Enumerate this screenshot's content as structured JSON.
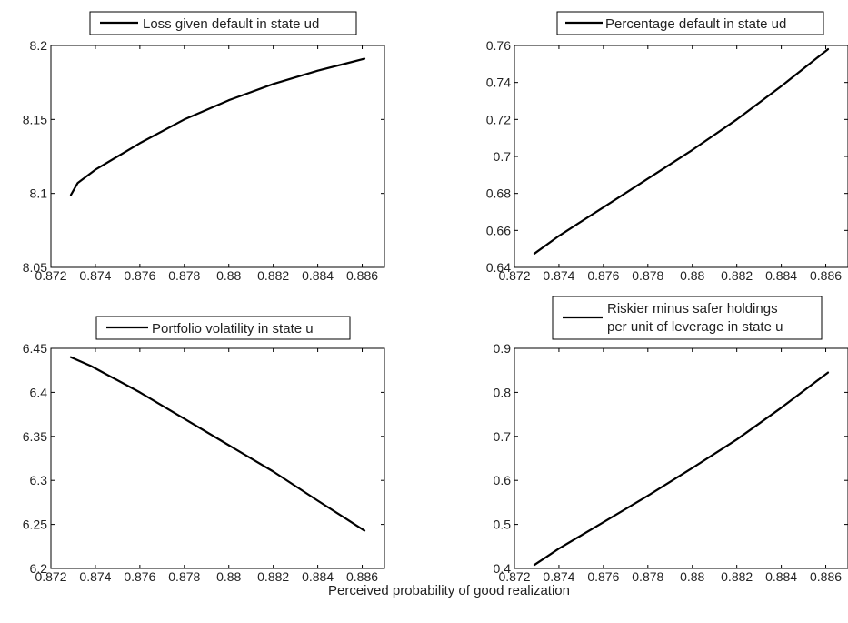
{
  "figure": {
    "xlabel": "Perceived probability of good realization"
  },
  "chart_data": [
    {
      "type": "line",
      "legend": [
        "Loss given default in state ud"
      ],
      "legend_position": "top-right",
      "xlim": [
        0.872,
        0.887
      ],
      "ylim": [
        8.05,
        8.2
      ],
      "xticks": [
        "0.872",
        "0.874",
        "0.876",
        "0.878",
        "0.88",
        "0.882",
        "0.884",
        "0.886"
      ],
      "yticks": [
        "8.05",
        "8.1",
        "8.15",
        "8.2"
      ],
      "series": [
        {
          "x": [
            0.8729,
            0.8732,
            0.874,
            0.876,
            0.878,
            0.88,
            0.882,
            0.884,
            0.8861
          ],
          "y": [
            8.099,
            8.107,
            8.116,
            8.134,
            8.15,
            8.163,
            8.174,
            8.183,
            8.191
          ]
        }
      ]
    },
    {
      "type": "line",
      "legend": [
        "Percentage default in state ud"
      ],
      "legend_position": "top-right",
      "xlim": [
        0.872,
        0.887
      ],
      "ylim": [
        0.64,
        0.76
      ],
      "xticks": [
        "0.872",
        "0.874",
        "0.876",
        "0.878",
        "0.88",
        "0.882",
        "0.884",
        "0.886"
      ],
      "yticks": [
        "0.64",
        "0.66",
        "0.68",
        "0.7",
        "0.72",
        "0.74",
        "0.76"
      ],
      "series": [
        {
          "x": [
            0.8729,
            0.874,
            0.876,
            0.878,
            0.88,
            0.882,
            0.884,
            0.8861
          ],
          "y": [
            0.6475,
            0.657,
            0.6725,
            0.688,
            0.7035,
            0.72,
            0.738,
            0.758
          ]
        }
      ]
    },
    {
      "type": "line",
      "legend": [
        "Portfolio volatility in state u"
      ],
      "legend_position": "top-right",
      "xlim": [
        0.872,
        0.887
      ],
      "ylim": [
        6.2,
        6.45
      ],
      "xticks": [
        "0.872",
        "0.874",
        "0.876",
        "0.878",
        "0.88",
        "0.882",
        "0.884",
        "0.886"
      ],
      "yticks": [
        "6.2",
        "6.25",
        "6.3",
        "6.35",
        "6.4",
        "6.45"
      ],
      "series": [
        {
          "x": [
            0.8729,
            0.8738,
            0.876,
            0.878,
            0.88,
            0.882,
            0.884,
            0.8861
          ],
          "y": [
            6.44,
            6.43,
            6.4,
            6.37,
            6.34,
            6.31,
            6.277,
            6.243
          ]
        }
      ]
    },
    {
      "type": "line",
      "legend": [
        "Riskier minus safer holdings",
        "per unit of leverage in state u"
      ],
      "legend_position": "top-right",
      "xlim": [
        0.872,
        0.887
      ],
      "ylim": [
        0.4,
        0.9
      ],
      "xticks": [
        "0.872",
        "0.874",
        "0.876",
        "0.878",
        "0.88",
        "0.882",
        "0.884",
        "0.886"
      ],
      "yticks": [
        "0.4",
        "0.5",
        "0.6",
        "0.7",
        "0.8",
        "0.9"
      ],
      "series": [
        {
          "x": [
            0.8729,
            0.8734,
            0.874,
            0.876,
            0.878,
            0.88,
            0.882,
            0.884,
            0.8861
          ],
          "y": [
            0.408,
            0.425,
            0.445,
            0.505,
            0.565,
            0.628,
            0.693,
            0.765,
            0.845
          ]
        }
      ]
    }
  ]
}
